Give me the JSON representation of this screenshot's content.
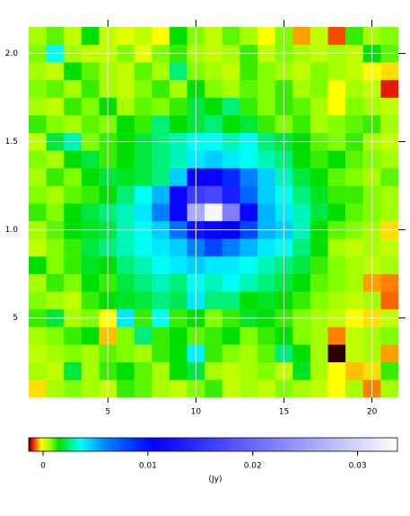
{
  "chart_data": {
    "type": "heatmap",
    "x": [
      1,
      2,
      3,
      4,
      5,
      6,
      7,
      8,
      9,
      10,
      11,
      12,
      13,
      14,
      15,
      16,
      17,
      18,
      19,
      20,
      21
    ],
    "y": [
      1,
      2,
      3,
      4,
      5,
      6,
      7,
      8,
      9,
      10,
      11,
      12,
      13,
      14,
      15,
      16,
      17,
      18,
      19,
      20,
      21
    ],
    "xlim": [
      0.5,
      21.5
    ],
    "ylim": [
      0.5,
      21.5
    ],
    "xticks": [
      5,
      10,
      15,
      20
    ],
    "yticks": [
      5,
      {
        "value": 10,
        "label": "1.0"
      },
      {
        "value": 15,
        "label": "1.5"
      },
      {
        "value": 20,
        "label": "2.0"
      }
    ],
    "grid": true,
    "z": [
      [
        -0.0003,
        0.0005,
        0.0008,
        0.0005,
        0.0003,
        0.0012,
        0.001,
        0.0005,
        0.0003,
        0.0008,
        0.0012,
        0.0003,
        0.0005,
        0.0003,
        0.0008,
        0.0005,
        0.0003,
        -0.0002,
        0.0005,
        -0.0006,
        0.0005
      ],
      [
        0.0005,
        0.0003,
        0.002,
        0.0005,
        0.0012,
        0.0015,
        0.001,
        0.0005,
        0.0015,
        0.002,
        0.0005,
        0.0003,
        0.0005,
        0.0008,
        0.0003,
        0.0018,
        0.0005,
        -0.0002,
        -0.0004,
        -0.0003,
        0.0012
      ],
      [
        0.0003,
        0.0005,
        0.0008,
        0.0005,
        0.001,
        0.0008,
        0.0005,
        0.0012,
        0.0015,
        0.0038,
        0.0012,
        0.0008,
        0.0005,
        0.001,
        0.0025,
        0.0015,
        0.0005,
        -0.0014,
        0.0003,
        0.0005,
        -0.0005
      ],
      [
        0.0005,
        0.0008,
        0.0012,
        0.0015,
        -0.0004,
        0.0008,
        0.0025,
        0.0012,
        0.0015,
        0.001,
        0.0012,
        0.0015,
        0.0008,
        0.0012,
        0.0015,
        0.0008,
        0.0005,
        -0.0006,
        0.0003,
        0.0005,
        0.0008
      ],
      [
        0.0012,
        0.002,
        0.0005,
        0.0008,
        -0.0002,
        0.004,
        0.0012,
        0.0035,
        0.0012,
        0.0015,
        0.0008,
        0.0012,
        0.0018,
        0.0015,
        0.0012,
        0.0008,
        0.0005,
        0.0003,
        -0.0002,
        -0.0003,
        0.0003
      ],
      [
        0.0008,
        0.0005,
        0.0003,
        0.0012,
        0.0015,
        0.0018,
        0.002,
        0.0025,
        0.0022,
        0.004,
        0.0025,
        0.0025,
        0.0015,
        0.0018,
        0.0015,
        0.0012,
        0.0008,
        0.0005,
        0.0003,
        0.0005,
        -0.0007
      ],
      [
        0.0005,
        0.0012,
        0.0008,
        0.0015,
        0.0012,
        0.002,
        0.0025,
        0.003,
        0.0025,
        0.0035,
        0.003,
        0.0035,
        0.003,
        0.0025,
        0.002,
        0.0015,
        0.001,
        0.0008,
        0.0005,
        -0.0005,
        -0.0006
      ],
      [
        0.0015,
        0.0008,
        0.0012,
        0.0018,
        0.0015,
        0.0025,
        0.003,
        0.0035,
        0.004,
        0.0045,
        0.004,
        0.004,
        0.0035,
        0.003,
        0.0025,
        0.002,
        0.0012,
        0.0008,
        0.0005,
        0.0003,
        0.0005
      ],
      [
        0.0003,
        0.0008,
        0.0012,
        0.002,
        0.0025,
        0.003,
        0.0035,
        0.004,
        0.0045,
        0.006,
        0.008,
        0.006,
        0.005,
        0.004,
        0.0035,
        0.0025,
        0.0015,
        0.0005,
        0.0003,
        0.0005,
        0.0003
      ],
      [
        0.0005,
        0.001,
        0.0015,
        0.0018,
        0.002,
        0.003,
        0.0035,
        0.0045,
        0.0065,
        0.012,
        0.011,
        0.0105,
        0.008,
        0.005,
        0.0045,
        0.003,
        0.0015,
        0.001,
        0.0008,
        0.0005,
        -0.0003
      ],
      [
        0.0012,
        0.0008,
        0.0015,
        0.002,
        0.0025,
        0.003,
        0.004,
        0.006,
        0.011,
        0.026,
        0.033,
        0.022,
        0.011,
        0.005,
        0.004,
        0.003,
        0.002,
        0.0015,
        0.001,
        0.0008,
        0.0005
      ],
      [
        0.0008,
        0.0005,
        0.001,
        0.0012,
        0.0015,
        0.0025,
        0.0035,
        0.005,
        0.011,
        0.016,
        0.017,
        0.013,
        0.007,
        0.0045,
        0.0035,
        0.0025,
        0.0018,
        0.0012,
        0.0012,
        0.0008,
        0.0005
      ],
      [
        0.0005,
        0.0012,
        0.0008,
        0.0015,
        0.002,
        0.0018,
        0.002,
        0.0025,
        0.0045,
        0.011,
        0.011,
        0.009,
        0.006,
        0.0045,
        0.003,
        0.002,
        0.0015,
        0.001,
        0.0008,
        0.0005,
        0.001
      ],
      [
        0.0008,
        0.0005,
        0.0015,
        0.002,
        0.0012,
        0.0015,
        0.002,
        0.0025,
        0.003,
        0.004,
        0.0045,
        0.004,
        0.0035,
        0.003,
        0.0025,
        0.0015,
        0.0012,
        0.0015,
        0.001,
        0.0008,
        0.0005
      ],
      [
        0.0003,
        0.002,
        0.003,
        0.0008,
        0.0012,
        0.0015,
        0.002,
        0.0025,
        0.003,
        0.0035,
        0.0035,
        0.003,
        0.0035,
        0.0025,
        0.002,
        0.0015,
        0.001,
        0.0008,
        0.0012,
        0.0005,
        0.0003
      ],
      [
        0.0012,
        0.0008,
        0.0005,
        0.001,
        0.0008,
        0.0015,
        0.0012,
        0.0025,
        0.0015,
        0.002,
        0.0025,
        0.0015,
        0.002,
        0.0012,
        0.0008,
        0.0012,
        0.0005,
        0.0008,
        0.001,
        0.0012,
        0.0005
      ],
      [
        0.0005,
        0.0003,
        0.0012,
        0.0008,
        0.0015,
        0.0005,
        0.001,
        0.0008,
        0.0012,
        0.002,
        0.0015,
        0.0025,
        0.0012,
        0.0008,
        0.0012,
        0.001,
        0.0005,
        -0.0002,
        0.0008,
        0.0005,
        0.0003
      ],
      [
        0.0008,
        0.001,
        0.0005,
        0.0012,
        0.0005,
        0.0003,
        0.0008,
        0.0012,
        0.0005,
        0.0015,
        0.0008,
        0.0005,
        0.001,
        0.0008,
        0.0012,
        0.0005,
        0.0008,
        -0.0002,
        0.0005,
        0.0003,
        -0.001
      ],
      [
        0.0005,
        0.0003,
        0.0015,
        0.001,
        0.0005,
        0.0003,
        0.001,
        0.0005,
        0.0025,
        0.0008,
        0.0005,
        0.0003,
        0.0012,
        0.0008,
        0.0005,
        0.0003,
        0.0008,
        0.0005,
        0.0003,
        -0.0002,
        -0.0003
      ],
      [
        0.0008,
        0.0035,
        0.0005,
        0.0003,
        0.0003,
        0.0008,
        0,
        0.0008,
        0.0012,
        0.0005,
        0.0003,
        0.0005,
        0.0012,
        0.0003,
        0.0008,
        0.0005,
        0.0003,
        0.0005,
        0.0003,
        0.0015,
        0.001
      ],
      [
        0.0005,
        0.001,
        0.0003,
        0.0015,
        0.0003,
        0,
        0.0003,
        -0.0002,
        0.0015,
        0.0008,
        0.0003,
        0.001,
        0.0005,
        -0.0002,
        0.0008,
        -0.0005,
        0.0003,
        -0.0008,
        0.0012,
        0.0005,
        0.0008
      ]
    ],
    "colorscale": [
      [
        -0.00137,
        "#300000"
      ],
      [
        -0.0011,
        "#e00000"
      ],
      [
        -0.0006,
        "#ff8000"
      ],
      [
        -0.0002,
        "#ffff00"
      ],
      [
        0.0008,
        "#80ff00"
      ],
      [
        0.0015,
        "#00e000"
      ],
      [
        0.0036,
        "#00ffff"
      ],
      [
        0.006,
        "#0080ff"
      ],
      [
        0.0105,
        "#0000ff"
      ],
      [
        0.0338,
        "#ffffff"
      ]
    ],
    "zlim": [
      -0.00137,
      0.0338
    ],
    "zticks": [
      0,
      0.01,
      0.02,
      0.03
    ],
    "zlabel": "(Jy)"
  }
}
